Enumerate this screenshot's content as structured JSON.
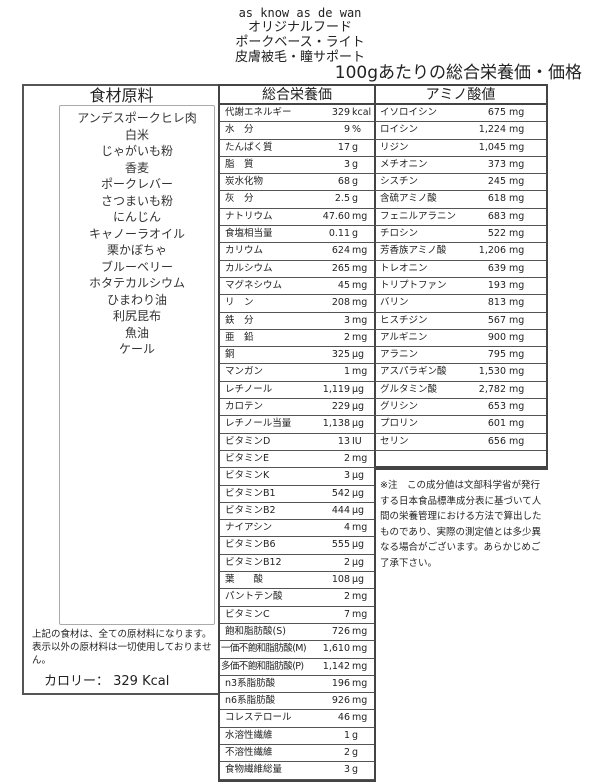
{
  "header": {
    "brand": "as know as de wan",
    "line1": "オリジナルフード",
    "line2": "ポークベース・ライト",
    "line3": "皮膚被毛・瞳サポート",
    "title": "100gあたりの総合栄養価・価格"
  },
  "ingredients": {
    "title": "食材原料",
    "items": [
      "アンデスポークヒレ肉",
      "白米",
      "じゃがいも粉",
      "香麦",
      "ポークレバー",
      "さつまいも粉",
      "にんじん",
      "キャノーラオイル",
      "栗かぼちゃ",
      "ブルーベリー",
      "ホタテカルシウム",
      "ひまわり油",
      "利尻昆布",
      "魚油",
      "ケール"
    ],
    "note": "上記の食材は、全ての原材料になります。表示以外の原材料は一切使用しておりません。",
    "calorie": "カロリー： 329 Kcal"
  },
  "nutrition": {
    "title": "総合栄養価",
    "rows": [
      [
        "代謝エネルギー",
        "329",
        "kcal"
      ],
      [
        "水　分",
        "9",
        "%"
      ],
      [
        "たんぱく質",
        "17",
        "g"
      ],
      [
        "脂　質",
        "3",
        "g"
      ],
      [
        "炭水化物",
        "68",
        "g"
      ],
      [
        "灰　分",
        "2.5",
        "g"
      ],
      [
        "ナトリウム",
        "47.60",
        "mg"
      ],
      [
        "食塩相当量",
        "0.11",
        "g"
      ],
      [
        "カリウム",
        "624",
        "mg"
      ],
      [
        "カルシウム",
        "265",
        "mg"
      ],
      [
        "マグネシウム",
        "45",
        "mg"
      ],
      [
        "リ　ン",
        "208",
        "mg"
      ],
      [
        "鉄　分",
        "3",
        "mg"
      ],
      [
        "亜　鉛",
        "2",
        "mg"
      ],
      [
        "銅",
        "325",
        "μg"
      ],
      [
        "マンガン",
        "1",
        "mg"
      ],
      [
        "レチノール",
        "1,119",
        "μg"
      ],
      [
        "カロテン",
        "229",
        "μg"
      ],
      [
        "レチノール当量",
        "1,138",
        "μg"
      ],
      [
        "ビタミンD",
        "13",
        "IU"
      ],
      [
        "ビタミンE",
        "2",
        "mg"
      ],
      [
        "ビタミンK",
        "3",
        "μg"
      ],
      [
        "ビタミンB1",
        "542",
        "μg"
      ],
      [
        "ビタミンB2",
        "444",
        "μg"
      ],
      [
        "ナイアシン",
        "4",
        "mg"
      ],
      [
        "ビタミンB6",
        "555",
        "μg"
      ],
      [
        "ビタミンB12",
        "2",
        "μg"
      ],
      [
        "葉　　酸",
        "108",
        "μg"
      ],
      [
        "パントテン酸",
        "2",
        "mg"
      ],
      [
        "ビタミンC",
        "7",
        "mg"
      ],
      [
        "飽和脂肪酸(S)",
        "726",
        "mg"
      ],
      [
        "一価不飽和脂肪酸(M)",
        "1,610",
        "mg"
      ],
      [
        "多価不飽和脂肪酸(P)",
        "1,142",
        "mg"
      ],
      [
        "n3系脂肪酸",
        "196",
        "mg"
      ],
      [
        "n6系脂肪酸",
        "926",
        "mg"
      ],
      [
        "コレステロール",
        "46",
        "mg"
      ],
      [
        "水溶性繊維",
        "1",
        "g"
      ],
      [
        "不溶性繊維",
        "2",
        "g"
      ],
      [
        "食物繊維総量",
        "3",
        "g"
      ]
    ]
  },
  "amino": {
    "title": "アミノ酸値",
    "rows": [
      [
        "イソロイシン",
        "675",
        "mg"
      ],
      [
        "ロイシン",
        "1,224",
        "mg"
      ],
      [
        "リジン",
        "1,045",
        "mg"
      ],
      [
        "メチオニン",
        "373",
        "mg"
      ],
      [
        "シスチン",
        "245",
        "mg"
      ],
      [
        "含硫アミノ酸",
        "618",
        "mg"
      ],
      [
        "フェニルアラニン",
        "683",
        "mg"
      ],
      [
        "チロシン",
        "522",
        "mg"
      ],
      [
        "芳香族アミノ酸",
        "1,206",
        "mg"
      ],
      [
        "トレオニン",
        "639",
        "mg"
      ],
      [
        "トリプトファン",
        "193",
        "mg"
      ],
      [
        "バリン",
        "813",
        "mg"
      ],
      [
        "ヒスチジン",
        "567",
        "mg"
      ],
      [
        "アルギニン",
        "900",
        "mg"
      ],
      [
        "アラニン",
        "795",
        "mg"
      ],
      [
        "アスパラギン酸",
        "1,530",
        "mg"
      ],
      [
        "グルタミン酸",
        "2,782",
        "mg"
      ],
      [
        "グリシン",
        "653",
        "mg"
      ],
      [
        "プロリン",
        "601",
        "mg"
      ],
      [
        "セリン",
        "656",
        "mg"
      ]
    ],
    "note": "※注　この成分値は文部科学省が発行する日本食品標準成分表に基づいて人間の栄養管理における方法で算出したものであり、実際の測定値とは多少異なる場合がございます。あらかじめご了承下さい。"
  }
}
